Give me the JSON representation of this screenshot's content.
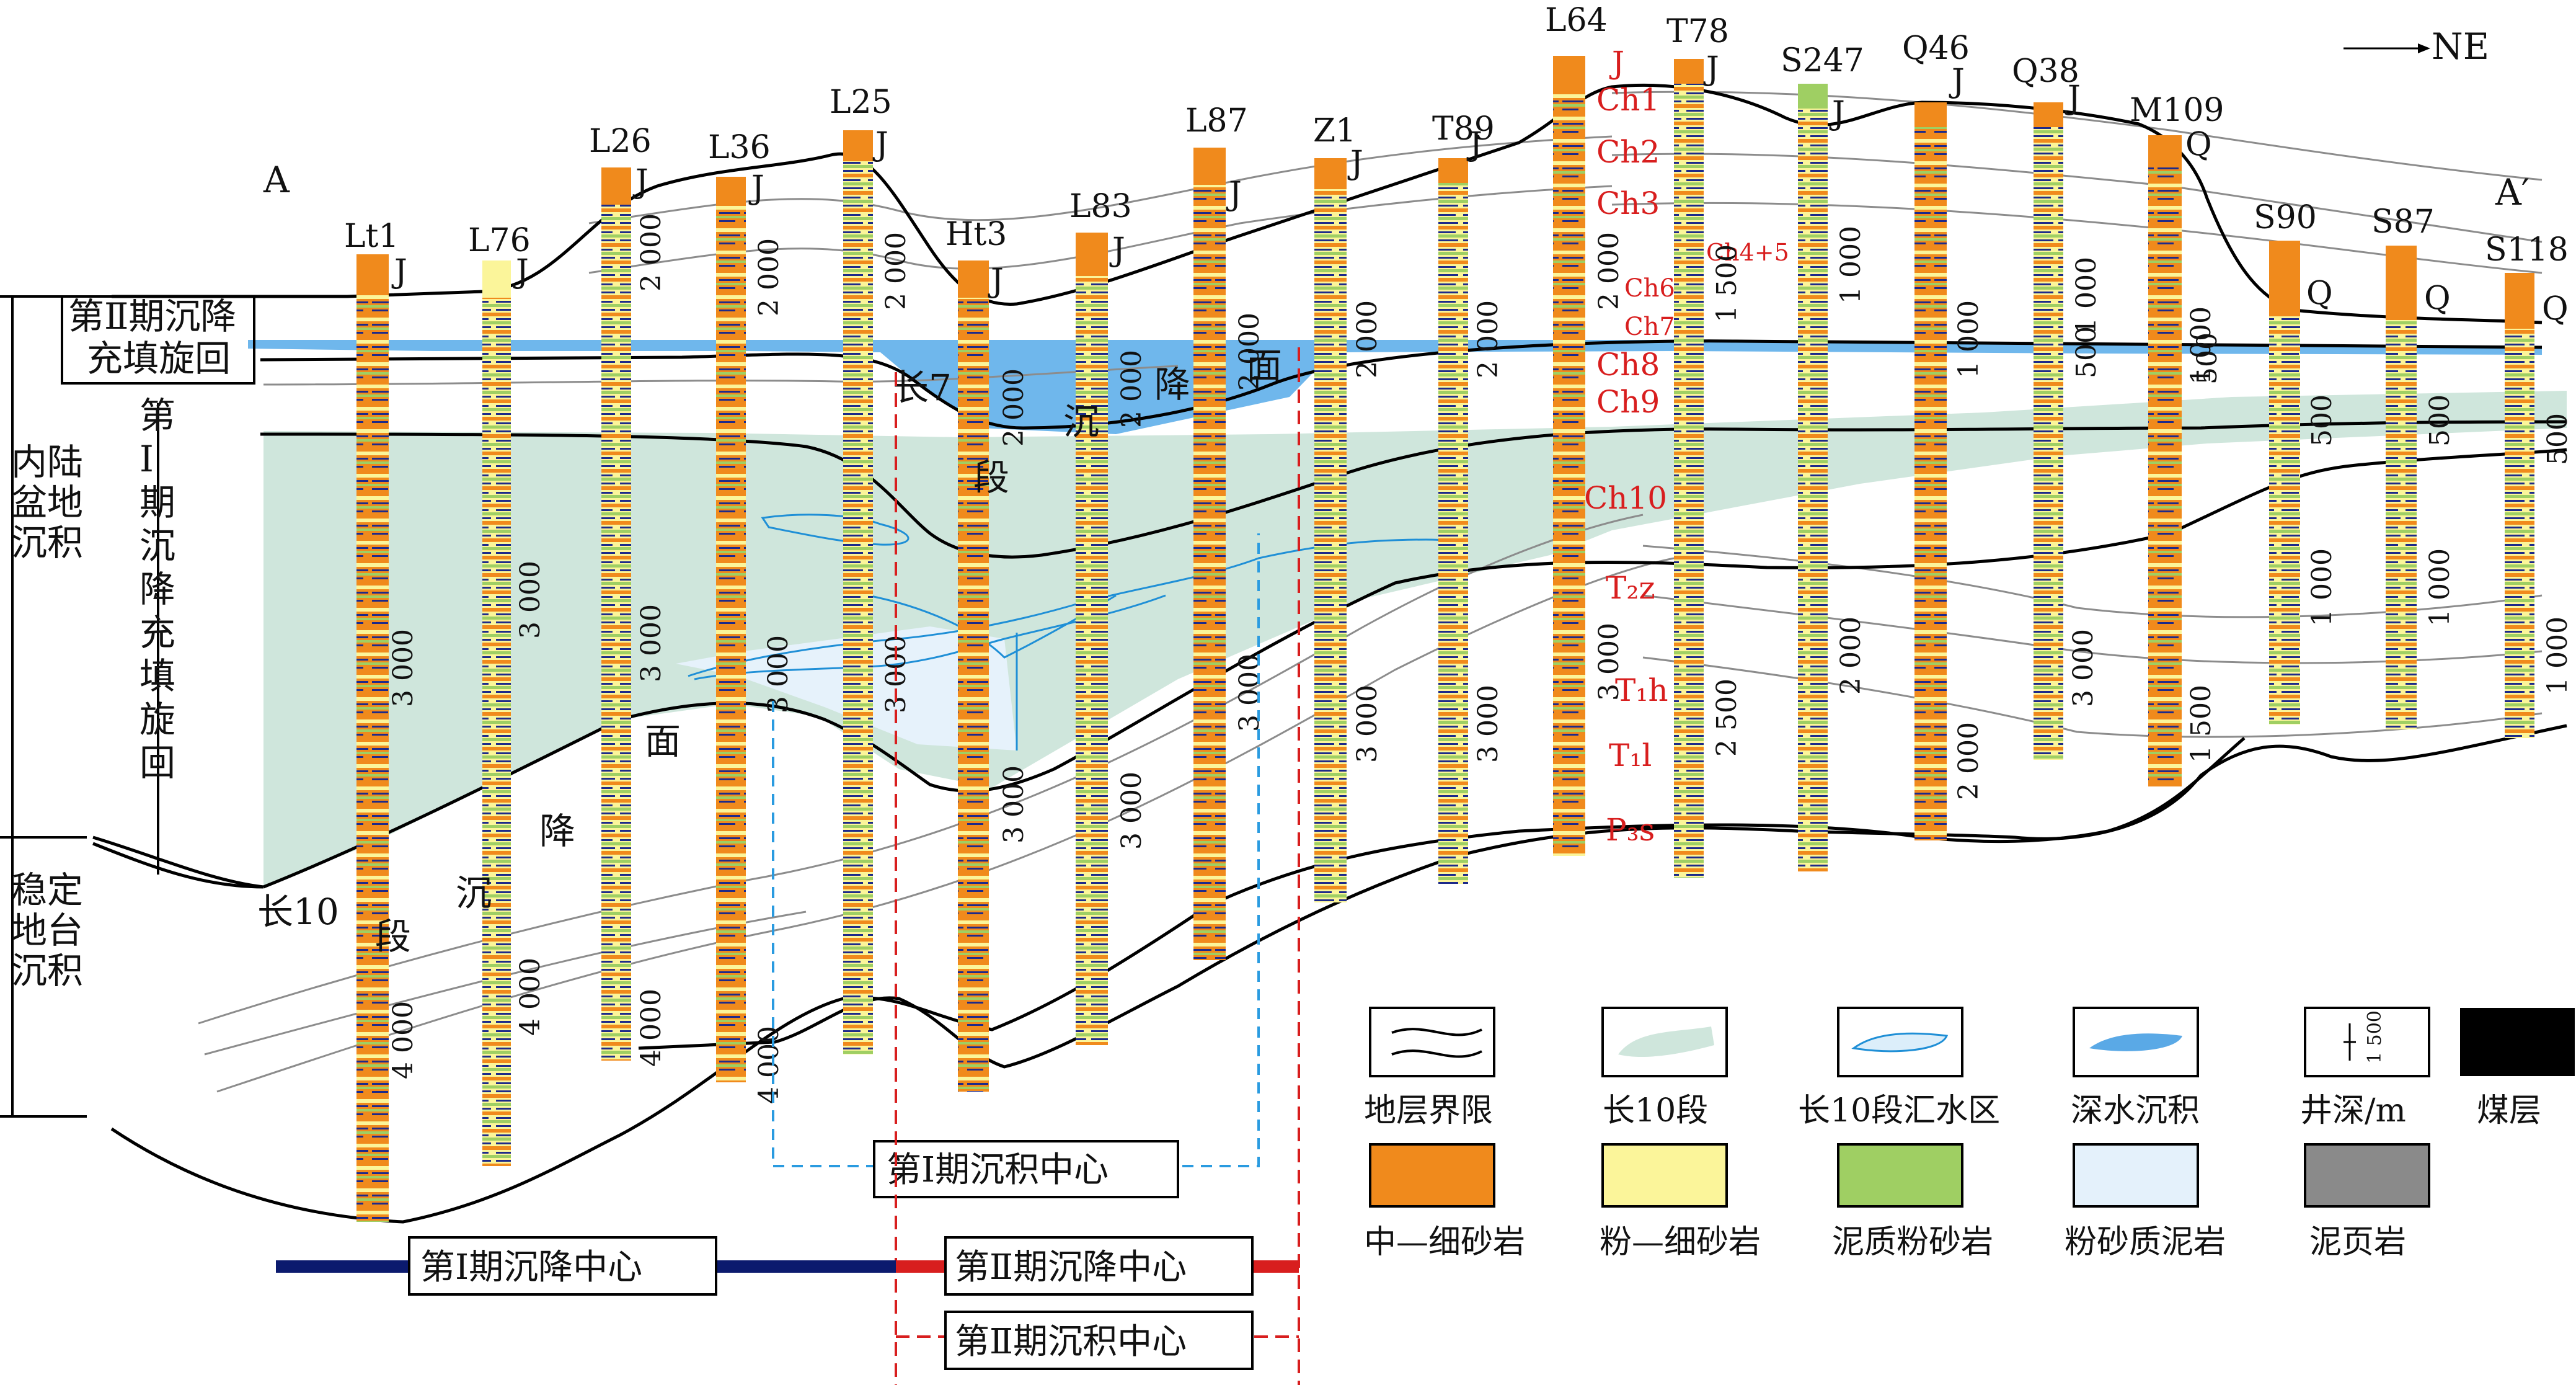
{
  "header": {
    "left_end": "A",
    "right_end": "A′",
    "direction": "NE"
  },
  "wells": [
    {
      "name": "Lt1",
      "top": "J"
    },
    {
      "name": "L76",
      "top": "J"
    },
    {
      "name": "L26",
      "top": "J"
    },
    {
      "name": "L36",
      "top": "J"
    },
    {
      "name": "L25",
      "top": "J"
    },
    {
      "name": "Ht3",
      "top": "J"
    },
    {
      "name": "L83",
      "top": "J"
    },
    {
      "name": "L87",
      "top": "J"
    },
    {
      "name": "Z1",
      "top": "J"
    },
    {
      "name": "T89",
      "top": "J"
    },
    {
      "name": "L64",
      "top": "J"
    },
    {
      "name": "T78",
      "top": "J"
    },
    {
      "name": "S247",
      "top": "J"
    },
    {
      "name": "Q46",
      "top": "J"
    },
    {
      "name": "Q38",
      "top": "J"
    },
    {
      "name": "M109",
      "top": "Q"
    },
    {
      "name": "S90",
      "top": "Q"
    },
    {
      "name": "S87",
      "top": "Q"
    },
    {
      "name": "S118",
      "top": "Q"
    }
  ],
  "strata": [
    "J",
    "Ch1",
    "Ch2",
    "Ch3",
    "Ch4+5",
    "Ch6",
    "Ch7",
    "Ch8",
    "Ch9",
    "Ch10",
    "T₂z",
    "T₁h",
    "T₁l",
    "P₃s"
  ],
  "depth_labels": [
    "2 000",
    "3 000",
    "4 000",
    "1 000",
    "1 500",
    "2 500",
    "500"
  ],
  "left_axis": {
    "upper": "内陆盆地沉积",
    "lower": "稳定地台沉积",
    "cycle2": "第Ⅱ期沉降充填旋回",
    "cycle1": "第Ⅰ期沉降充填旋回"
  },
  "surfaces": {
    "ch7": "长7段沉降面",
    "ch10": "长10段沉降面"
  },
  "centers": {
    "dep1": "第Ⅰ期沉积中心",
    "sub1": "第Ⅰ期沉降中心",
    "sub2": "第Ⅱ期沉降中心",
    "dep2": "第Ⅱ期沉积中心"
  },
  "legend": [
    {
      "label": "地层界限",
      "icon": "boundary-icon"
    },
    {
      "label": "长10段",
      "icon": "ch10-area-icon",
      "color": "#cfe6dc"
    },
    {
      "label": "长10段汇水区",
      "icon": "catchment-icon",
      "color": "#dceefa"
    },
    {
      "label": "深水沉积",
      "icon": "deepwater-icon",
      "color": "#5aa9e6"
    },
    {
      "label": "井深/m",
      "icon": "depth-icon",
      "value": "1 500"
    },
    {
      "label": "煤层",
      "icon": "coal-icon",
      "color": "#000000"
    },
    {
      "label": "中—细砂岩",
      "icon": "med-fine-sandstone-icon",
      "color": "#f08a1c"
    },
    {
      "label": "粉—细砂岩",
      "icon": "silt-fine-sandstone-icon",
      "color": "#fbf59a"
    },
    {
      "label": "泥质粉砂岩",
      "icon": "argillaceous-siltstone-icon",
      "color": "#9fcf63"
    },
    {
      "label": "粉砂质泥岩",
      "icon": "silty-mudstone-icon",
      "color": "#e4f1fb"
    },
    {
      "label": "泥页岩",
      "icon": "shale-icon",
      "color": "#8a8a8a"
    }
  ]
}
